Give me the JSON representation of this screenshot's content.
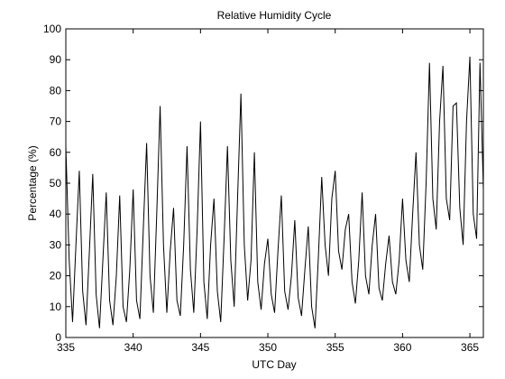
{
  "chart_data": {
    "type": "line",
    "title": "Relative Humidity Cycle",
    "xlabel": "UTC Day",
    "ylabel": "Percentage (%)",
    "x": [
      335,
      335.25,
      335.5,
      335.75,
      336,
      336.25,
      336.5,
      336.75,
      337,
      337.25,
      337.5,
      337.75,
      338,
      338.25,
      338.5,
      338.75,
      339,
      339.25,
      339.5,
      339.75,
      340,
      340.25,
      340.5,
      340.75,
      341,
      341.25,
      341.5,
      341.75,
      342,
      342.25,
      342.5,
      342.75,
      343,
      343.25,
      343.5,
      343.75,
      344,
      344.25,
      344.5,
      344.75,
      345,
      345.25,
      345.5,
      345.75,
      346,
      346.25,
      346.5,
      346.75,
      347,
      347.25,
      347.5,
      347.75,
      348,
      348.25,
      348.5,
      348.75,
      349,
      349.25,
      349.5,
      349.75,
      350,
      350.25,
      350.5,
      350.75,
      351,
      351.25,
      351.5,
      351.75,
      352,
      352.25,
      352.5,
      352.75,
      353,
      353.25,
      353.5,
      353.75,
      354,
      354.25,
      354.5,
      354.75,
      355,
      355.25,
      355.5,
      355.75,
      356,
      356.25,
      356.5,
      356.75,
      357,
      357.25,
      357.5,
      357.75,
      358,
      358.25,
      358.5,
      358.75,
      359,
      359.25,
      359.5,
      359.75,
      360,
      360.25,
      360.5,
      360.75,
      361,
      361.25,
      361.5,
      361.75,
      362,
      362.25,
      362.5,
      362.75,
      363,
      363.25,
      363.5,
      363.75,
      364,
      364.25,
      364.5,
      364.75,
      365,
      365.25,
      365.5,
      365.75,
      366
    ],
    "series": [
      {
        "color": "#000000",
        "values": [
          62,
          25,
          5,
          30,
          54,
          15,
          4,
          28,
          53,
          14,
          3,
          25,
          47,
          12,
          4,
          20,
          46,
          10,
          5,
          22,
          48,
          12,
          6,
          35,
          63,
          20,
          8,
          40,
          75,
          30,
          8,
          28,
          42,
          12,
          7,
          30,
          62,
          22,
          8,
          35,
          70,
          18,
          6,
          30,
          45,
          15,
          5,
          32,
          62,
          25,
          10,
          45,
          79,
          30,
          12,
          25,
          60,
          18,
          9,
          24,
          32,
          14,
          8,
          28,
          46,
          15,
          9,
          20,
          38,
          13,
          7,
          22,
          36,
          10,
          3,
          26,
          52,
          30,
          20,
          45,
          54,
          28,
          22,
          35,
          40,
          18,
          11,
          25,
          47,
          20,
          14,
          30,
          40,
          16,
          12,
          24,
          33,
          18,
          14,
          25,
          45,
          25,
          18,
          40,
          60,
          30,
          22,
          50,
          89,
          45,
          35,
          70,
          88,
          45,
          38,
          75,
          76,
          42,
          30,
          70,
          91,
          40,
          32,
          89,
          48
        ]
      }
    ],
    "xlim": [
      335,
      366
    ],
    "ylim": [
      0,
      100
    ],
    "xticks": [
      335,
      340,
      345,
      350,
      355,
      360,
      365
    ],
    "yticks": [
      0,
      10,
      20,
      30,
      40,
      50,
      60,
      70,
      80,
      90,
      100
    ]
  }
}
